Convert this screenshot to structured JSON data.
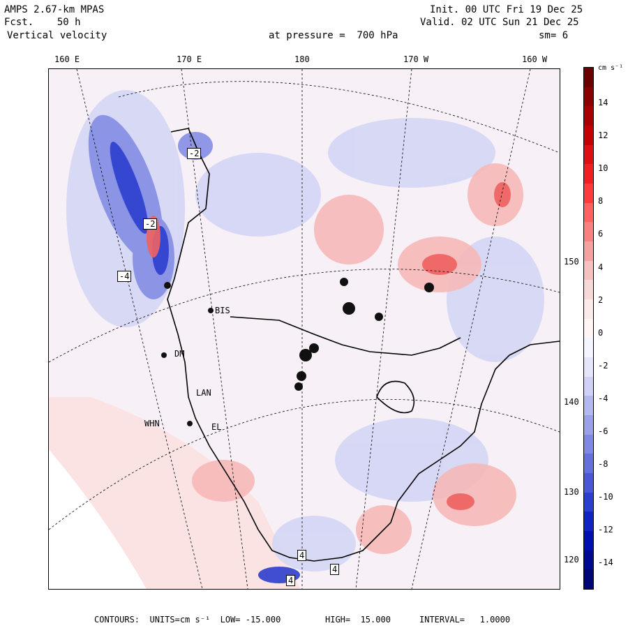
{
  "header": {
    "model": "AMPS 2.67-km MPAS",
    "forecast": "Fcst.    50 h",
    "field": "Vertical velocity",
    "pressure": "at pressure =  700 hPa",
    "init": "Init. 00 UTC Fri 19 Dec 25",
    "valid": "Valid. 02 UTC Sun 21 Dec 25",
    "smooth": "sm= 6"
  },
  "longitude_ticks": [
    "160 E",
    "170 E",
    "180",
    "170 W",
    "160 W"
  ],
  "latitude_ticks": [
    "150 W",
    "140 W",
    "130 W",
    "120 W"
  ],
  "stations": [
    "BIS",
    "DM",
    "LAN",
    "WHN",
    "EL"
  ],
  "box_labels": [
    "-2",
    "-2",
    "-4",
    "4",
    "4",
    "4"
  ],
  "colorbar": {
    "unit": "cm s⁻¹",
    "labels": [
      "14",
      "12",
      "10",
      "8",
      "6",
      "4",
      "2",
      "0",
      "-2",
      "-4",
      "-6",
      "-8",
      "-10",
      "-12",
      "-14"
    ],
    "colors": [
      "#6a0000",
      "#8a0000",
      "#a80000",
      "#c40000",
      "#dc1010",
      "#f02020",
      "#ff3a3a",
      "#ff6060",
      "#f88080",
      "#f6a0a0",
      "#f4c0c0",
      "#f7d8d8",
      "#fbeaea",
      "#fff5f5",
      "#f5f5ff",
      "#e6e6fb",
      "#cfd2f6",
      "#b3b8ef",
      "#9aa1ea",
      "#7f88e4",
      "#6470dc",
      "#4a58d6",
      "#2c3ece",
      "#1024c4",
      "#0010b0",
      "#000a90",
      "#000676"
    ]
  },
  "footer": {
    "contours": "CONTOURS:  UNITS=cm s⁻¹  LOW= -15.000",
    "high": "HIGH=  15.000",
    "interval": "INTERVAL=   1.0000"
  }
}
